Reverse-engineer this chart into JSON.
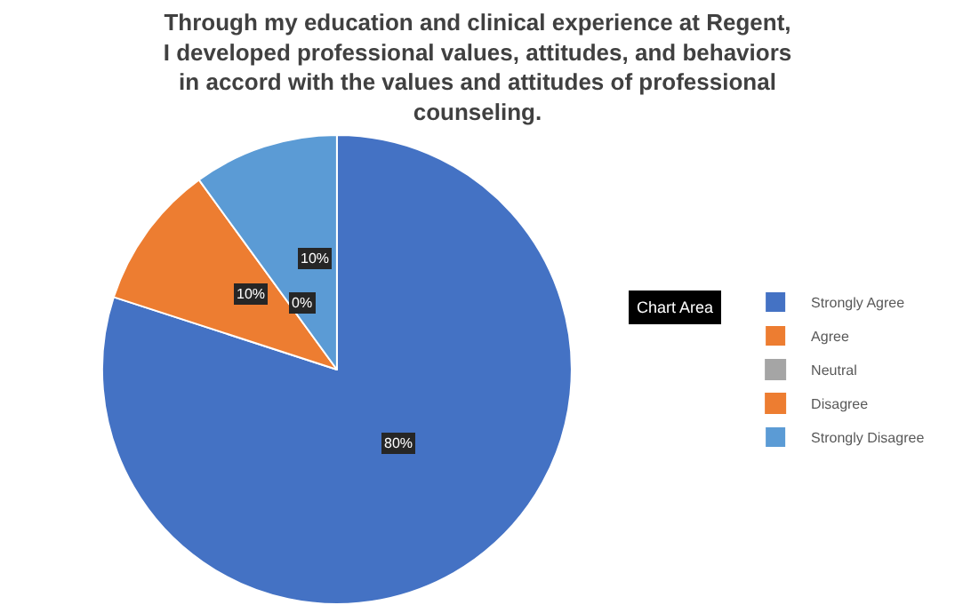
{
  "chart_data": {
    "type": "pie",
    "title": "Through my education and clinical experience at Regent,\nI developed professional values, attitudes, and behaviors\nin accord with the values and attitudes of professional\ncounseling.",
    "categories": [
      "Strongly Agree",
      "Agree",
      "Neutral",
      "Disagree",
      "Strongly Disagree"
    ],
    "values": [
      80,
      10,
      0,
      0,
      10
    ],
    "colors": [
      "#4472c4",
      "#ed7d31",
      "#a5a5a5",
      "#ed7d31",
      "#5b9bd5"
    ],
    "value_labels": [
      "80%",
      "10%",
      "0%",
      null,
      "10%"
    ],
    "annotations": [
      "Chart Area"
    ],
    "legend": "right"
  }
}
